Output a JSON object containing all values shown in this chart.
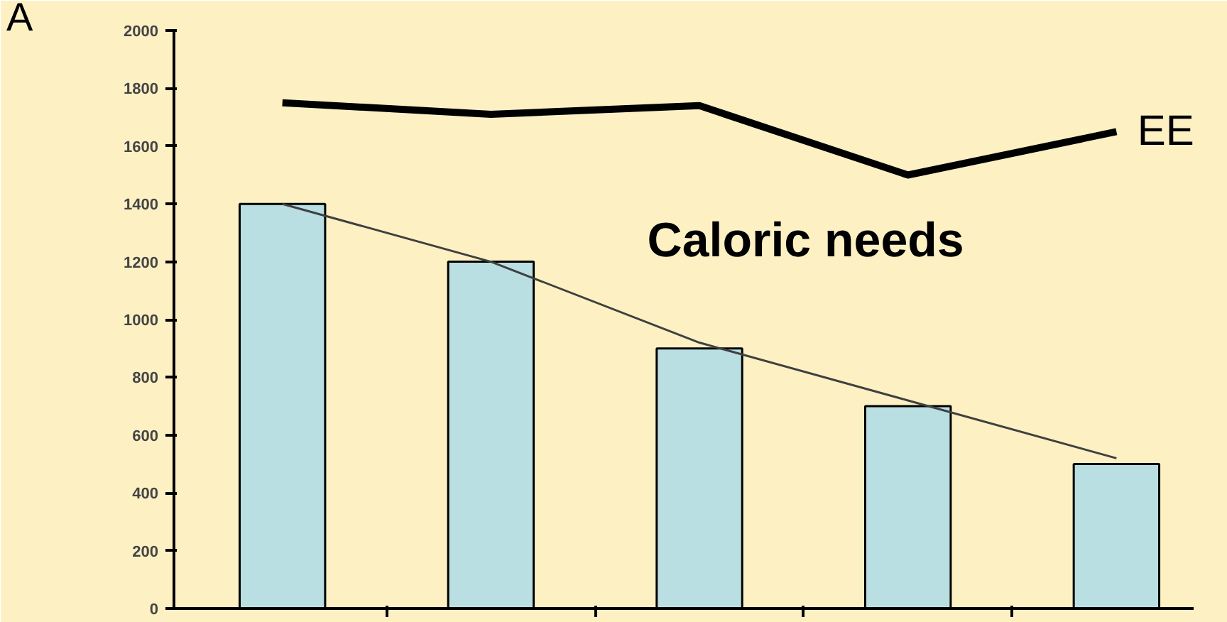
{
  "chart_data": {
    "type": "bar",
    "categories": [
      null,
      null,
      null,
      null,
      null
    ],
    "series": [
      {
        "color": "#b9dfe3",
        "values": [
          1400,
          1200,
          900,
          700,
          500
        ]
      },
      {
        "type": "line",
        "color": "#404040",
        "values": [
          1400,
          1200,
          920,
          720,
          520
        ]
      },
      {
        "type": "line",
        "name": "EE",
        "color": "#000000",
        "values": [
          1750,
          1710,
          1740,
          1500,
          1650
        ]
      }
    ],
    "ylim": [
      0,
      2000
    ],
    "yticks": [
      0,
      200,
      400,
      600,
      800,
      1000,
      1200,
      1400,
      1600,
      1800,
      2000
    ],
    "tick_labels": "y",
    "grid": false,
    "marker": "none",
    "annotations": [
      "A",
      "Caloric needs"
    ]
  }
}
